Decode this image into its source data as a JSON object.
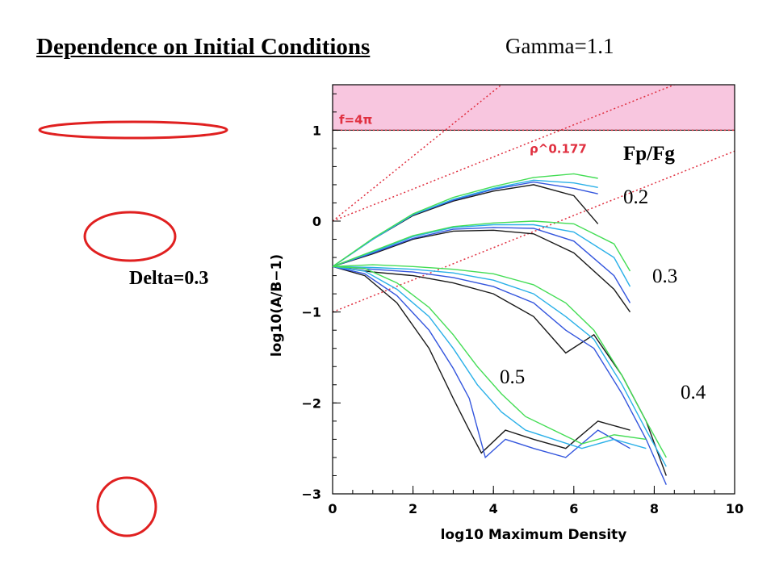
{
  "slide": {
    "title": "Dependence on Initial Conditions",
    "gamma_label": "Gamma=1.1",
    "delta_label": "Delta=0.3",
    "ellipse_color": "#e02020"
  },
  "chart_data": {
    "type": "line",
    "xlabel": "log10 Maximum Density",
    "ylabel": "log10(A/B−1)",
    "xlim": [
      0,
      10
    ],
    "ylim": [
      -3,
      1.5
    ],
    "xticks": [
      "0",
      "2",
      "4",
      "6",
      "8",
      "10"
    ],
    "yticks": [
      "−3",
      "−2",
      "−1",
      "0",
      "1"
    ],
    "band": {
      "label": "f=4π",
      "y_from": 1.0,
      "y_to": 1.5,
      "color": "#f8c6df"
    },
    "reference_lines": [
      {
        "label": "",
        "x": [
          0,
          4.2
        ],
        "y": [
          0,
          1.5
        ]
      },
      {
        "label": "",
        "x": [
          0,
          8.5
        ],
        "y": [
          0,
          1.5
        ]
      },
      {
        "label": "",
        "x": [
          0,
          10
        ],
        "y": [
          -1,
          0.77
        ]
      }
    ],
    "slope_label": "ρ^0.177",
    "legend_title": "Fp/Fg",
    "group_labels": [
      "0.2",
      "0.3",
      "0.4",
      "0.5"
    ],
    "series_colors": [
      "#1a1a1a",
      "#3355dd",
      "#2ab0e8",
      "#44dd55"
    ],
    "groups": [
      {
        "name": "0.2",
        "curves": [
          {
            "x": [
              0,
              1,
              2,
              3,
              4,
              5,
              6,
              6.6
            ],
            "y": [
              -0.5,
              -0.2,
              0.06,
              0.22,
              0.33,
              0.4,
              0.28,
              -0.03
            ]
          },
          {
            "x": [
              0,
              1,
              2,
              3,
              4,
              5,
              6,
              6.6
            ],
            "y": [
              -0.5,
              -0.2,
              0.07,
              0.23,
              0.35,
              0.43,
              0.36,
              0.3
            ]
          },
          {
            "x": [
              0,
              1,
              2,
              3,
              4,
              5,
              6,
              6.6
            ],
            "y": [
              -0.5,
              -0.2,
              0.07,
              0.24,
              0.36,
              0.45,
              0.42,
              0.37
            ]
          },
          {
            "x": [
              0,
              1,
              2,
              3,
              4,
              5,
              6,
              6.6
            ],
            "y": [
              -0.5,
              -0.19,
              0.08,
              0.26,
              0.38,
              0.48,
              0.52,
              0.47
            ]
          }
        ]
      },
      {
        "name": "0.3",
        "curves": [
          {
            "x": [
              0,
              1,
              2,
              3,
              4,
              5,
              6,
              7,
              7.4
            ],
            "y": [
              -0.5,
              -0.36,
              -0.2,
              -0.11,
              -0.1,
              -0.14,
              -0.35,
              -0.75,
              -1.0
            ]
          },
          {
            "x": [
              0,
              1,
              2,
              3,
              4,
              5,
              6,
              7,
              7.4
            ],
            "y": [
              -0.5,
              -0.35,
              -0.19,
              -0.09,
              -0.07,
              -0.08,
              -0.22,
              -0.6,
              -0.9
            ]
          },
          {
            "x": [
              0,
              1,
              2,
              3,
              4,
              5,
              6,
              7,
              7.4
            ],
            "y": [
              -0.5,
              -0.34,
              -0.17,
              -0.07,
              -0.04,
              -0.04,
              -0.12,
              -0.4,
              -0.72
            ]
          },
          {
            "x": [
              0,
              1,
              2,
              3,
              4,
              5,
              6,
              7,
              7.4
            ],
            "y": [
              -0.5,
              -0.33,
              -0.16,
              -0.06,
              -0.02,
              0.0,
              -0.03,
              -0.25,
              -0.55
            ]
          }
        ]
      },
      {
        "name": "0.4",
        "curves": [
          {
            "x": [
              0,
              1,
              2,
              3,
              4,
              5,
              5.8,
              6.5,
              7.2,
              7.8,
              8.3
            ],
            "y": [
              -0.5,
              -0.56,
              -0.6,
              -0.68,
              -0.8,
              -1.05,
              -1.45,
              -1.25,
              -1.7,
              -2.2,
              -2.8
            ]
          },
          {
            "x": [
              0,
              1,
              2,
              3,
              4,
              5,
              5.8,
              6.5,
              7.2,
              7.8,
              8.3
            ],
            "y": [
              -0.5,
              -0.53,
              -0.56,
              -0.62,
              -0.72,
              -0.9,
              -1.2,
              -1.4,
              -1.9,
              -2.4,
              -2.9
            ]
          },
          {
            "x": [
              0,
              1,
              2,
              3,
              4,
              5,
              5.8,
              6.5,
              7.2,
              7.8,
              8.3
            ],
            "y": [
              -0.5,
              -0.51,
              -0.53,
              -0.57,
              -0.65,
              -0.8,
              -1.05,
              -1.3,
              -1.8,
              -2.3,
              -2.7
            ]
          },
          {
            "x": [
              0,
              1,
              2,
              3,
              4,
              5,
              5.8,
              6.5,
              7.2,
              7.8,
              8.3
            ],
            "y": [
              -0.5,
              -0.48,
              -0.5,
              -0.53,
              -0.58,
              -0.7,
              -0.9,
              -1.2,
              -1.7,
              -2.2,
              -2.6
            ]
          }
        ]
      },
      {
        "name": "0.5",
        "curves": [
          {
            "x": [
              0,
              0.8,
              1.6,
              2.4,
              3.0,
              3.4,
              3.7,
              4.3,
              5.0,
              5.8,
              6.6,
              7.4
            ],
            "y": [
              -0.5,
              -0.6,
              -0.9,
              -1.4,
              -1.95,
              -2.3,
              -2.55,
              -2.3,
              -2.4,
              -2.5,
              -2.2,
              -2.3
            ]
          },
          {
            "x": [
              0,
              0.8,
              1.6,
              2.4,
              3.0,
              3.4,
              3.8,
              4.3,
              5.0,
              5.8,
              6.6,
              7.4
            ],
            "y": [
              -0.5,
              -0.58,
              -0.82,
              -1.2,
              -1.62,
              -1.95,
              -2.6,
              -2.4,
              -2.5,
              -2.6,
              -2.3,
              -2.5
            ]
          },
          {
            "x": [
              0,
              0.8,
              1.6,
              2.4,
              3.0,
              3.6,
              4.2,
              4.8,
              5.5,
              6.2,
              7.0,
              7.8
            ],
            "y": [
              -0.5,
              -0.55,
              -0.75,
              -1.05,
              -1.4,
              -1.8,
              -2.1,
              -2.3,
              -2.4,
              -2.5,
              -2.4,
              -2.5
            ]
          },
          {
            "x": [
              0,
              0.8,
              1.6,
              2.4,
              3.0,
              3.6,
              4.2,
              4.8,
              5.5,
              6.2,
              7.0,
              7.8
            ],
            "y": [
              -0.5,
              -0.52,
              -0.68,
              -0.95,
              -1.25,
              -1.6,
              -1.9,
              -2.15,
              -2.3,
              -2.45,
              -2.35,
              -2.4
            ]
          }
        ]
      }
    ]
  }
}
